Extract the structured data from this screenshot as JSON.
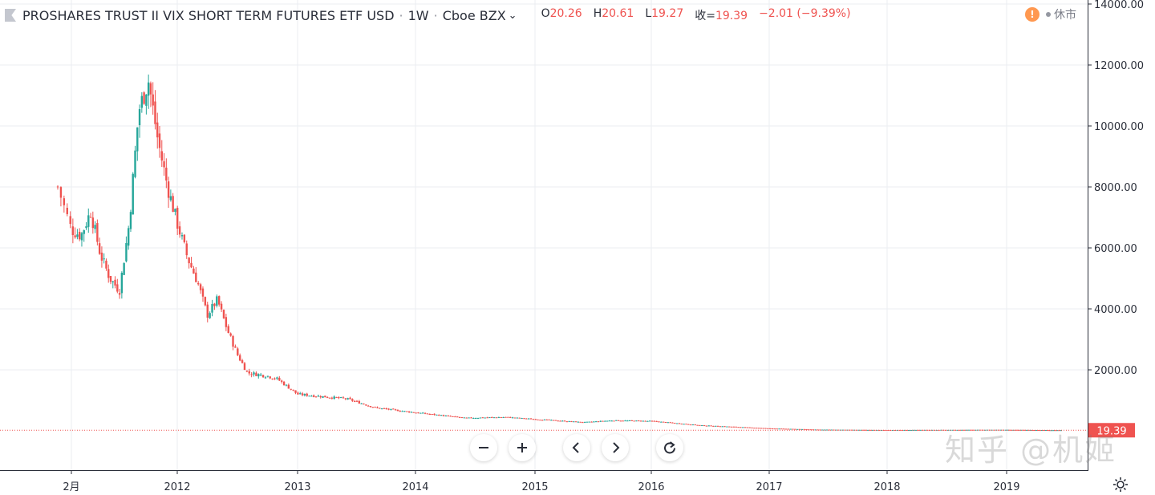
{
  "header": {
    "title": "PROSHARES TRUST II VIX SHORT TERM FUTURES ETF USD",
    "separator": "·",
    "interval": "1W",
    "exchange": "Cboe BZX",
    "ohlc": [
      {
        "label": "O",
        "value": "20.26"
      },
      {
        "label": "H",
        "value": "20.61"
      },
      {
        "label": "L",
        "value": "19.27"
      },
      {
        "label": "收=",
        "value": "19.39"
      }
    ],
    "change": "−2.01 (−9.39%)"
  },
  "status": {
    "icon": "warning-icon",
    "text": "休市"
  },
  "watermark": "知乎 @机姬",
  "colors": {
    "up": "#26a69a",
    "down": "#ef5350",
    "grid": "#ebeef2",
    "axis": "#2a2e39",
    "price_tag": "#ef5350",
    "warning": "#ff9850"
  },
  "chart_data": {
    "type": "candlestick",
    "title": "PROSHARES TRUST II VIX SHORT TERM FUTURES ETF USD",
    "interval": "1W",
    "y_ticks": [
      "2000.00",
      "4000.00",
      "6000.00",
      "8000.00",
      "10000.00",
      "12000.00",
      "14000.00"
    ],
    "y_range": [
      -130,
      14100
    ],
    "x_ticks": [
      "2月",
      "2012",
      "2013",
      "2014",
      "2015",
      "2016",
      "2017",
      "2018",
      "2019"
    ],
    "last_price": "19.39",
    "approx_close_path": [
      {
        "x": "2011-01",
        "y": 8000
      },
      {
        "x": "2011-02",
        "y": 6600
      },
      {
        "x": "2011-03",
        "y": 6400
      },
      {
        "x": "2011-04",
        "y": 7200
      },
      {
        "x": "2011-05",
        "y": 5800
      },
      {
        "x": "2011-06",
        "y": 5000
      },
      {
        "x": "2011-07",
        "y": 4600
      },
      {
        "x": "2011-08",
        "y": 6800
      },
      {
        "x": "2011-09",
        "y": 10500
      },
      {
        "x": "2011-10",
        "y": 11500
      },
      {
        "x": "2011-11",
        "y": 9500
      },
      {
        "x": "2011-12",
        "y": 8000
      },
      {
        "x": "2012-01",
        "y": 6800
      },
      {
        "x": "2012-02",
        "y": 5700
      },
      {
        "x": "2012-03",
        "y": 4900
      },
      {
        "x": "2012-04",
        "y": 3800
      },
      {
        "x": "2012-05",
        "y": 4300
      },
      {
        "x": "2012-06",
        "y": 3300
      },
      {
        "x": "2012-07",
        "y": 2500
      },
      {
        "x": "2012-08",
        "y": 1900
      },
      {
        "x": "2012-09",
        "y": 1850
      },
      {
        "x": "2012-10",
        "y": 1800
      },
      {
        "x": "2012-11",
        "y": 1700
      },
      {
        "x": "2013-01",
        "y": 1200
      },
      {
        "x": "2013-06",
        "y": 1050
      },
      {
        "x": "2013-09",
        "y": 750
      },
      {
        "x": "2014-01",
        "y": 600
      },
      {
        "x": "2014-06",
        "y": 420
      },
      {
        "x": "2014-10",
        "y": 450
      },
      {
        "x": "2015-01",
        "y": 380
      },
      {
        "x": "2015-06",
        "y": 280
      },
      {
        "x": "2015-09",
        "y": 340
      },
      {
        "x": "2016-01",
        "y": 320
      },
      {
        "x": "2016-06",
        "y": 180
      },
      {
        "x": "2017-01",
        "y": 80
      },
      {
        "x": "2017-06",
        "y": 40
      },
      {
        "x": "2018-01",
        "y": 25
      },
      {
        "x": "2018-06",
        "y": 30
      },
      {
        "x": "2019-01",
        "y": 35
      },
      {
        "x": "2019-07",
        "y": 19.39
      }
    ]
  }
}
